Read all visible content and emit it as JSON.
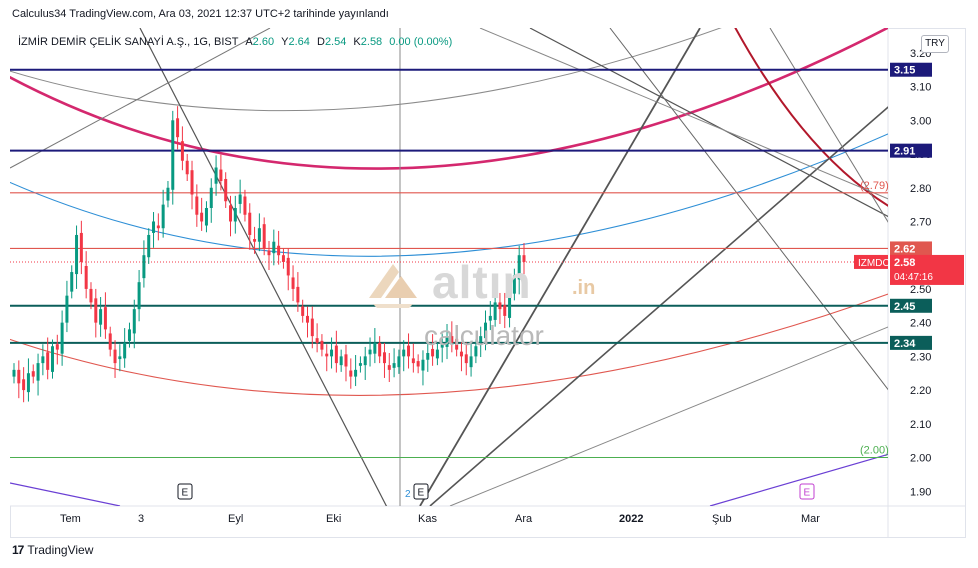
{
  "header": {
    "publish_text": "Calculus34 TradingView.com, Ara 03, 2021 12:37 UTC+2 tarihinde yayınlandı"
  },
  "symbol": {
    "title": "İZMİR DEMİR ÇELİK SANAYİ A.Ş., 1G, BIST",
    "o_label": "A",
    "o_value": "2.60",
    "h_label": "Y",
    "h_value": "2.64",
    "l_label": "D",
    "l_value": "2.54",
    "c_label": "K",
    "c_value": "2.58",
    "change": "0.00 (0.00%)"
  },
  "currency_button": "TRY",
  "watermark": {
    "brand": "altın",
    "tld": ".in",
    "sub": "calculator"
  },
  "footer": {
    "logo": "17",
    "brand": "TradingView"
  },
  "colors": {
    "up": "#089981",
    "down": "#f23645",
    "navy": "#1c1a7a",
    "teal": "#0b5e5a",
    "red_line": "#e0574f",
    "magenta": "#d4286e",
    "blue_arc": "#2e8fd6",
    "dark_red": "#b2182b",
    "grey": "#6f6f6f",
    "green_line": "#4caf50",
    "purple": "#6a3fd4"
  },
  "chart_data": {
    "type": "candlestick",
    "symbol": "IZMDC",
    "x_ticks": [
      "Tem",
      "3",
      "Eyl",
      "Eki",
      "Kas",
      "Ara",
      "2022",
      "Şub",
      "Mar"
    ],
    "y_ticks": [
      "3.20",
      "3.10",
      "3.00",
      "2.90",
      "2.80",
      "2.70",
      "2.60",
      "2.50",
      "2.40",
      "2.30",
      "2.20",
      "2.10",
      "2.00",
      "1.90"
    ],
    "ylim": [
      1.85,
      3.3
    ],
    "last": {
      "open": 2.6,
      "high": 2.64,
      "low": 2.54,
      "close": 2.58
    },
    "horizontal_levels": [
      {
        "label": "3.15",
        "value": 3.15,
        "kind": "navy"
      },
      {
        "label": "2.91",
        "value": 2.91,
        "kind": "navy"
      },
      {
        "label": "(2.79)",
        "value": 2.785,
        "kind": "red"
      },
      {
        "label": "2.62",
        "value": 2.62,
        "kind": "red"
      },
      {
        "label": "2.45",
        "value": 2.45,
        "kind": "teal"
      },
      {
        "label": "2.34",
        "value": 2.34,
        "kind": "teal"
      },
      {
        "label": "(2.00)",
        "value": 2.0,
        "kind": "green"
      }
    ],
    "price_tag": {
      "symbol": "IZMDC",
      "price": "2.58",
      "countdown": "04:47:16"
    },
    "events": [
      "E",
      "E",
      "E"
    ],
    "event_prefix": "2",
    "prices": [
      2.26,
      2.22,
      2.2,
      2.25,
      2.24,
      2.28,
      2.3,
      2.26,
      2.33,
      2.32,
      2.4,
      2.48,
      2.55,
      2.66,
      2.58,
      2.5,
      2.46,
      2.4,
      2.44,
      2.38,
      2.32,
      2.28,
      2.3,
      2.34,
      2.38,
      2.44,
      2.52,
      2.6,
      2.66,
      2.7,
      2.68,
      2.75,
      2.8,
      3.0,
      2.95,
      2.88,
      2.84,
      2.78,
      2.72,
      2.7,
      2.74,
      2.8,
      2.86,
      2.82,
      2.76,
      2.7,
      2.74,
      2.78,
      2.72,
      2.66,
      2.64,
      2.68,
      2.62,
      2.6,
      2.64,
      2.6,
      2.58,
      2.54,
      2.5,
      2.46,
      2.42,
      2.4,
      2.36,
      2.34,
      2.32,
      2.3,
      2.32,
      2.28,
      2.3,
      2.27,
      2.24,
      2.26,
      2.28,
      2.3,
      2.32,
      2.34,
      2.3,
      2.28,
      2.26,
      2.28,
      2.3,
      2.32,
      2.3,
      2.28,
      2.27,
      2.29,
      2.31,
      2.3,
      2.32,
      2.34,
      2.36,
      2.34,
      2.32,
      2.3,
      2.28,
      2.3,
      2.33,
      2.36,
      2.4,
      2.42,
      2.46,
      2.44,
      2.42,
      2.48,
      2.54,
      2.6,
      2.58
    ]
  }
}
